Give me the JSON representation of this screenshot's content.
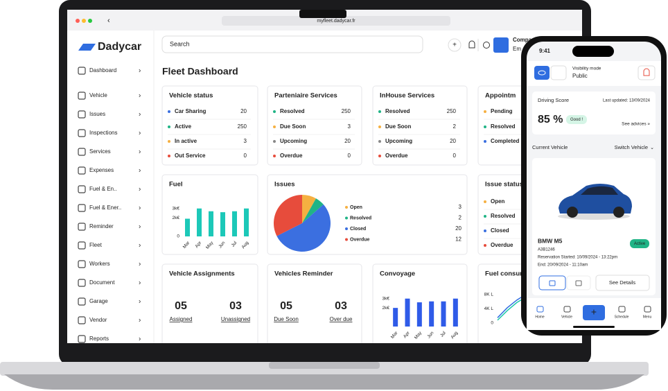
{
  "browser": {
    "url": "myfleet.dadycar.fr"
  },
  "sidebar": {
    "logo": "Dadycar",
    "items": [
      "Dashboard",
      "Vehicle",
      "Issues",
      "Inspections",
      "Services",
      "Expenses",
      "Fuel & En..",
      "Fuel & Ener..",
      "Reminder",
      "Fleet",
      "Workers",
      "Document",
      "Garage",
      "Vendor",
      "Reports"
    ]
  },
  "topbar": {
    "search": "Search",
    "user": "Compa",
    "role": "Em"
  },
  "page_title": "Fleet Dashboard",
  "status_cards": [
    {
      "title": "Vehicle status",
      "rows": [
        {
          "label": "Car Sharing",
          "value": 20,
          "color": "#3b6fe0"
        },
        {
          "label": "Active",
          "value": 250,
          "color": "#20b486"
        },
        {
          "label": "In active",
          "value": 3,
          "color": "#f5b041"
        },
        {
          "label": "Out Service",
          "value": 0,
          "color": "#e74c3c"
        }
      ]
    },
    {
      "title": "Parteniaire Services",
      "rows": [
        {
          "label": "Resolved",
          "value": 250,
          "color": "#20b486"
        },
        {
          "label": "Due Soon",
          "value": 3,
          "color": "#f5b041"
        },
        {
          "label": "Upcoming",
          "value": 20,
          "color": "#888888"
        },
        {
          "label": "Overdue",
          "value": 0,
          "color": "#e74c3c"
        }
      ]
    },
    {
      "title": "InHouse Services",
      "rows": [
        {
          "label": "Resolved",
          "value": 250,
          "color": "#20b486"
        },
        {
          "label": "Due Soon",
          "value": 2,
          "color": "#f5b041"
        },
        {
          "label": "Upcoming",
          "value": 20,
          "color": "#888888"
        },
        {
          "label": "Overdue",
          "value": 0,
          "color": "#e74c3c"
        }
      ]
    },
    {
      "title": "Appointm",
      "rows": [
        {
          "label": "Pending",
          "color": "#f5b041"
        },
        {
          "label": "Resolved",
          "color": "#20b486"
        },
        {
          "label": "Completed",
          "color": "#3b6fe0"
        }
      ]
    }
  ],
  "fuel": {
    "title": "Fuel",
    "type": "bar",
    "color": "#1cc8b8",
    "ylim": [
      0,
      3500
    ],
    "yticks": [
      0,
      {
        "value": 2000,
        "label": "2k€"
      },
      {
        "value": 3000,
        "label": "3k€"
      }
    ],
    "categories": [
      "Mar",
      "Apr",
      "May",
      "Jun",
      "Jul",
      "Aug"
    ],
    "values": [
      1900,
      3000,
      2700,
      2600,
      2700,
      3000
    ]
  },
  "issues": {
    "title": "Issues",
    "type": "pie",
    "series": [
      {
        "name": "Open",
        "value": 3,
        "color": "#f5b041"
      },
      {
        "name": "Resolved",
        "value": 2,
        "color": "#20b486"
      },
      {
        "name": "Closed",
        "value": 20,
        "color": "#3b6fe0"
      },
      {
        "name": "Overdue",
        "value": 12,
        "color": "#e74c3c"
      }
    ]
  },
  "issue_status": {
    "title": "Issue status",
    "rows": [
      {
        "label": "Open",
        "color": "#f5b041"
      },
      {
        "label": "Resolved",
        "color": "#20b486"
      },
      {
        "label": "Closed",
        "color": "#3b6fe0"
      },
      {
        "label": "Overdue",
        "color": "#e74c3c"
      }
    ]
  },
  "counters": [
    {
      "title": "Vehicle Assignments",
      "items": [
        {
          "value": "05",
          "label": "Assigned",
          "color": "#20b486"
        },
        {
          "value": "03",
          "label": "Unassigned",
          "color": "#e74c3c"
        }
      ]
    },
    {
      "title": "Vehicles Reminder",
      "items": [
        {
          "value": "05",
          "label": "Due Soon",
          "color": "#f5b041"
        },
        {
          "value": "03",
          "label": "Over due",
          "color": "#e74c3c"
        }
      ]
    }
  ],
  "convoyage": {
    "title": "Convoyage",
    "type": "bar",
    "color": "#2f5be8",
    "ylim": [
      0,
      3500
    ],
    "yticks": [
      {
        "value": 2000,
        "label": "2k€"
      },
      {
        "value": 3000,
        "label": "3k€"
      }
    ],
    "categories": [
      "Mar",
      "Apr",
      "May",
      "Jun",
      "Jul",
      "Aug"
    ],
    "values": [
      2000,
      3000,
      2600,
      2700,
      2700,
      3000
    ]
  },
  "fuel_consumption": {
    "title": "Fuel consum",
    "type": "line",
    "ylim": [
      0,
      8000
    ],
    "yticks": [
      0,
      {
        "value": 4000,
        "label": "4K L"
      },
      {
        "value": 8000,
        "label": "8K L"
      }
    ],
    "series": [
      {
        "color": "#2f6de0",
        "values": [
          1500,
          4300,
          6500,
          8200
        ]
      },
      {
        "color": "#1cc8a8",
        "values": [
          800,
          3500,
          5800,
          7400
        ]
      }
    ]
  },
  "phone": {
    "time": "9:41",
    "visibility_label": "Visibility mode",
    "visibility": "Public",
    "score_title": "Driving Score",
    "updated": "Last updated: 13/09/2024",
    "score": "85 %",
    "badge": "Good !",
    "advice": "See advices »",
    "current": "Current Vehicle",
    "switch": "Switch Vehicle",
    "car": "BMW M5",
    "plate": "A3B1246",
    "start": "Reservation Started: 10/09/2024 - 13:22pm",
    "end": "End: 20/09/2024 - 11:10am",
    "status": "Active",
    "details": "See Details",
    "nav": [
      "Home",
      "Vehicle",
      "Schedule",
      "Menu"
    ]
  }
}
